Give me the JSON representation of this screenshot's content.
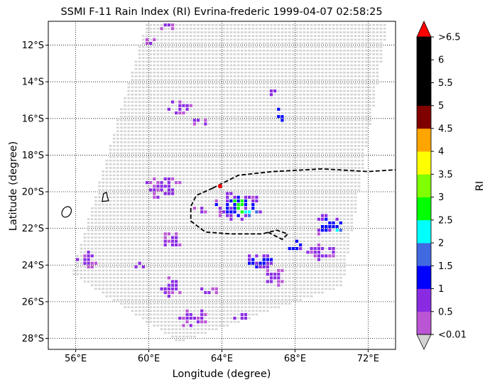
{
  "chart_data": {
    "type": "heatmap",
    "title": "SSMI F-11 Rain Index (RI) Evrina-frederic 1999-04-07 02:58:25",
    "xlabel": "Longitude (degree)",
    "ylabel": "Latitude (degree)",
    "xlim": [
      54.5,
      73.5
    ],
    "ylim": [
      -28.6,
      -10.7
    ],
    "x_ticks": [
      56,
      60,
      64,
      68,
      72
    ],
    "x_tick_labels": [
      "56°E",
      "60°E",
      "64°E",
      "68°E",
      "72°E"
    ],
    "y_ticks": [
      -12,
      -14,
      -16,
      -18,
      -20,
      -22,
      -24,
      -26,
      -28
    ],
    "y_tick_labels": [
      "12°S",
      "14°S",
      "16°S",
      "18°S",
      "20°S",
      "22°S",
      "24°S",
      "26°S",
      "28°S"
    ],
    "grid": "dotted",
    "swath_color": "#d3d3d3",
    "swath_corners": [
      [
        59.9,
        -10.7
      ],
      [
        73.1,
        -10.7
      ],
      [
        70.6,
        -25.2
      ],
      [
        61.6,
        -28.2
      ],
      [
        55.8,
        -24.5
      ]
    ],
    "track": [
      [
        54.5,
        -20.0
      ],
      [
        63.5,
        -19.8
      ],
      [
        64.9,
        -19.1
      ],
      [
        66.8,
        -18.9
      ],
      [
        69.5,
        -18.75
      ],
      [
        72.0,
        -18.9
      ],
      [
        73.5,
        -18.8
      ]
    ],
    "track_loop": [
      [
        63.5,
        -19.8
      ],
      [
        62.6,
        -20.2
      ],
      [
        62.3,
        -20.8
      ],
      [
        62.3,
        -21.6
      ],
      [
        63.1,
        -22.2
      ],
      [
        64.5,
        -22.3
      ],
      [
        66.2,
        -22.3
      ],
      [
        67.0,
        -22.1
      ],
      [
        67.6,
        -22.3
      ],
      [
        67.3,
        -22.6
      ],
      [
        66.5,
        -22.2
      ]
    ],
    "storm_center": [
      63.9,
      -19.7
    ],
    "islands": [
      {
        "name": "Réunion",
        "center": [
          55.5,
          -21.1
        ]
      },
      {
        "name": "Mauritius",
        "center": [
          57.6,
          -20.3
        ]
      }
    ],
    "rain_regions": [
      {
        "center": [
          60.1,
          -11.8
        ],
        "size": [
          0.9,
          0.5
        ],
        "level": 1
      },
      {
        "center": [
          61.0,
          -11.0
        ],
        "size": [
          0.8,
          0.4
        ],
        "level": 1
      },
      {
        "center": [
          67.2,
          -15.8
        ],
        "size": [
          0.6,
          0.9
        ],
        "level": 2
      },
      {
        "center": [
          66.8,
          -14.5
        ],
        "size": [
          0.4,
          0.9
        ],
        "level": 1
      },
      {
        "center": [
          61.8,
          -15.4
        ],
        "size": [
          1.5,
          1.0
        ],
        "level": 1
      },
      {
        "center": [
          62.8,
          -16.2
        ],
        "size": [
          1.0,
          0.6
        ],
        "level": 1
      },
      {
        "center": [
          60.8,
          -19.8
        ],
        "size": [
          2.0,
          1.4
        ],
        "level": 1
      },
      {
        "center": [
          61.3,
          -22.6
        ],
        "size": [
          1.4,
          0.9
        ],
        "level": 1
      },
      {
        "center": [
          64.9,
          -20.8
        ],
        "size": [
          2.8,
          1.6
        ],
        "level": 2
      },
      {
        "center": [
          65.0,
          -20.8
        ],
        "size": [
          1.0,
          0.8
        ],
        "level": 5
      },
      {
        "center": [
          65.6,
          -21.1
        ],
        "size": [
          0.7,
          0.5
        ],
        "level": 4
      },
      {
        "center": [
          62.7,
          -21.1
        ],
        "size": [
          1.0,
          0.6
        ],
        "level": 1
      },
      {
        "center": [
          69.8,
          -21.8
        ],
        "size": [
          1.9,
          1.2
        ],
        "level": 2
      },
      {
        "center": [
          70.4,
          -22.1
        ],
        "size": [
          0.5,
          0.4
        ],
        "level": 4
      },
      {
        "center": [
          69.5,
          -23.3
        ],
        "size": [
          2.2,
          0.9
        ],
        "level": 1
      },
      {
        "center": [
          68.0,
          -23.0
        ],
        "size": [
          1.0,
          0.7
        ],
        "level": 2
      },
      {
        "center": [
          66.1,
          -23.8
        ],
        "size": [
          1.6,
          1.0
        ],
        "level": 2
      },
      {
        "center": [
          66.9,
          -24.6
        ],
        "size": [
          1.3,
          1.2
        ],
        "level": 1
      },
      {
        "center": [
          56.5,
          -23.7
        ],
        "size": [
          1.8,
          1.0
        ],
        "level": 1
      },
      {
        "center": [
          59.5,
          -24.0
        ],
        "size": [
          1.0,
          0.6
        ],
        "level": 1
      },
      {
        "center": [
          61.3,
          -25.2
        ],
        "size": [
          1.3,
          1.2
        ],
        "level": 1
      },
      {
        "center": [
          63.2,
          -25.4
        ],
        "size": [
          1.3,
          0.6
        ],
        "level": 1
      },
      {
        "center": [
          62.4,
          -26.9
        ],
        "size": [
          1.6,
          1.2
        ],
        "level": 1
      },
      {
        "center": [
          65.1,
          -26.8
        ],
        "size": [
          0.9,
          0.6
        ],
        "level": 1
      }
    ]
  },
  "colorbar": {
    "label": "RI",
    "tick_labels": [
      "<0.01",
      "0.5",
      "1",
      "1.5",
      "2",
      "2.5",
      "3",
      "3.5",
      "4",
      "4.5",
      "5",
      "5.5",
      "6",
      ">6.5"
    ],
    "colors": [
      "#ba55d3",
      "#8a2be2",
      "#0000ff",
      "#4169e1",
      "#00ffff",
      "#00ff00",
      "#7fff00",
      "#ffff00",
      "#ffa500",
      "#800000",
      "#000000",
      "#000000",
      "#000000"
    ],
    "under_color": "#d3d3d3",
    "over_color": "#ff0000"
  }
}
